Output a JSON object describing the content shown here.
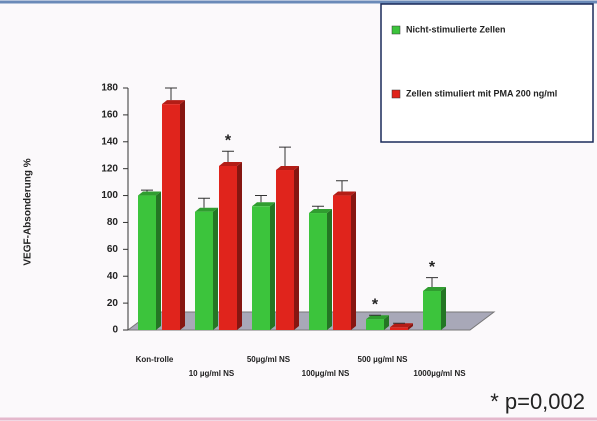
{
  "chart_data": {
    "type": "bar",
    "ylabel": "VEGF-Absonderung %",
    "categories": [
      "Kon-trolle",
      "10 µg/ml NS",
      "50µg/ml NS",
      "100µg/ml NS",
      "500 µg/ml NS",
      "1000µg/ml NS"
    ],
    "series": [
      {
        "name": "Nicht-stimulierte Zellen",
        "color": "#3cc43c",
        "values": [
          100,
          88,
          92,
          87,
          8,
          29
        ],
        "errors": [
          4,
          10,
          8,
          5,
          3,
          10
        ]
      },
      {
        "name": "Zellen stimuliert mit PMA 200 ng/ml",
        "color": "#e0241c",
        "values": [
          168,
          122,
          119,
          100,
          2,
          null
        ],
        "errors": [
          12,
          11,
          17,
          11,
          3,
          null
        ]
      }
    ],
    "ylim": [
      0,
      180
    ],
    "yticks": [
      0,
      20,
      40,
      60,
      80,
      100,
      120,
      140,
      160,
      180
    ],
    "annotations": [
      {
        "text": "*",
        "category": 1,
        "series": 1
      },
      {
        "text": "*",
        "category": 4,
        "series": 0
      },
      {
        "text": "*",
        "category": 5,
        "series": 0
      }
    ],
    "footnote": "* p=0,002"
  }
}
